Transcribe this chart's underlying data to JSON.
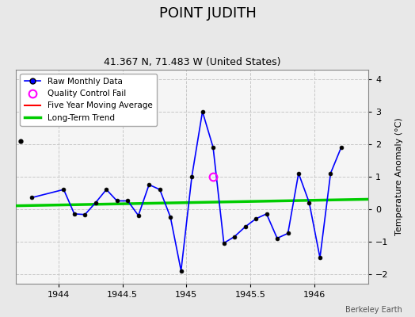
{
  "title": "POINT JUDITH",
  "subtitle": "41.367 N, 71.483 W (United States)",
  "credit": "Berkeley Earth",
  "ylabel": "Temperature Anomaly (°C)",
  "xlim": [
    1943.67,
    1946.42
  ],
  "ylim": [
    -2.3,
    4.3
  ],
  "yticks": [
    -2,
    -1,
    0,
    1,
    2,
    3,
    4
  ],
  "xticks": [
    1944,
    1944.5,
    1945,
    1945.5,
    1946
  ],
  "bg_color": "#e8e8e8",
  "plot_bg_color": "#f5f5f5",
  "isolated_x": [
    1943.708
  ],
  "isolated_y": [
    2.1
  ],
  "raw_x": [
    1943.792,
    1944.042,
    1944.125,
    1944.208,
    1944.292,
    1944.375,
    1944.458,
    1944.542,
    1944.625,
    1944.708,
    1944.792,
    1944.875,
    1944.958,
    1945.042,
    1945.125,
    1945.208,
    1945.292,
    1945.375,
    1945.458,
    1945.542,
    1945.625,
    1945.708,
    1945.792,
    1945.875,
    1945.958,
    1946.042,
    1946.125,
    1946.208
  ],
  "raw_y": [
    0.35,
    0.6,
    -0.15,
    -0.17,
    0.2,
    0.6,
    0.25,
    0.25,
    -0.2,
    0.75,
    0.6,
    -0.25,
    -1.9,
    1.0,
    3.0,
    1.9,
    -1.05,
    -0.85,
    -0.55,
    -0.3,
    -0.15,
    -0.9,
    -0.75,
    1.1,
    0.2,
    -1.5,
    1.1,
    1.9
  ],
  "qc_x": [
    1945.208
  ],
  "qc_y": [
    1.0
  ],
  "trend_x": [
    1943.67,
    1946.42
  ],
  "trend_y": [
    0.1,
    0.3
  ],
  "raw_line_color": "#0000ff",
  "marker_color": "#000000",
  "qc_color": "#ff00ff",
  "trend_color": "#00cc00",
  "mavg_color": "#ff0000",
  "legend_bg": "#ffffff",
  "grid_color": "#c8c8c8"
}
